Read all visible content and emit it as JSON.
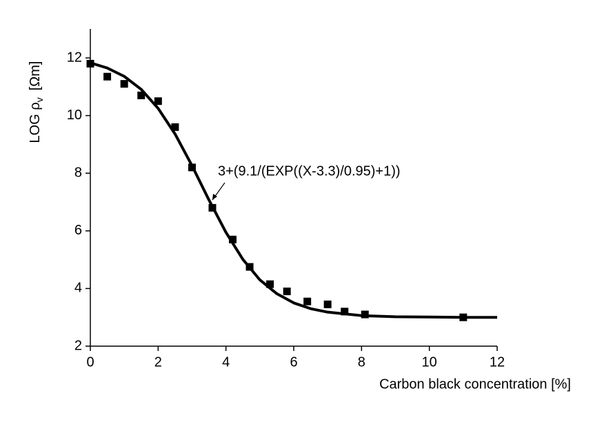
{
  "chart_data": {
    "type": "scatter",
    "x_label": "Carbon black concentration [%]",
    "y_label": "LOG ρ",
    "y_label_sub": "v",
    "y_label_unit": "[Ωm]",
    "annotation": "3+(9.1/(EXP((X-3.3)/0.95)+1))",
    "xlim": [
      0,
      12
    ],
    "ylim": [
      2,
      13
    ],
    "xticks": [
      0,
      2,
      4,
      6,
      8,
      10,
      12
    ],
    "yticks": [
      2,
      4,
      6,
      8,
      10,
      12
    ],
    "grid": false,
    "series": [
      {
        "style": "marker",
        "color": "#000000",
        "x": [
          0,
          0.5,
          1,
          1.5,
          2,
          2.5,
          3,
          3.6,
          4.2,
          4.7,
          5.3,
          5.8,
          6.4,
          7,
          7.5,
          8.1,
          11
        ],
        "values": [
          11.8,
          11.35,
          11.1,
          10.7,
          10.5,
          9.6,
          8.2,
          6.8,
          5.7,
          4.75,
          4.15,
          3.9,
          3.55,
          3.45,
          3.2,
          3.1,
          3.0
        ]
      },
      {
        "style": "line",
        "color": "#000000",
        "x": [
          0,
          0.5,
          1,
          1.5,
          2,
          2.5,
          3,
          3.5,
          4,
          4.5,
          5,
          5.5,
          6,
          6.5,
          7,
          8,
          9,
          10,
          11,
          12
        ],
        "values": [
          11.83,
          11.65,
          11.36,
          10.91,
          10.25,
          9.36,
          8.26,
          7.07,
          5.95,
          5.01,
          4.3,
          3.82,
          3.5,
          3.3,
          3.18,
          3.06,
          3.02,
          3.01,
          3.0,
          3.0
        ]
      }
    ]
  }
}
